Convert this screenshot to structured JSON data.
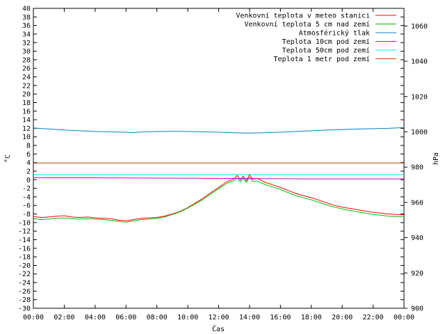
{
  "chart_data": {
    "type": "line",
    "xlabel": "Čas",
    "ylabel": "°C",
    "y2label": "hPa",
    "ylim": [
      -30,
      40
    ],
    "y2lim": [
      900,
      1070
    ],
    "y_ticks": [
      40,
      38,
      36,
      34,
      32,
      30,
      28,
      26,
      24,
      22,
      20,
      18,
      16,
      14,
      12,
      10,
      8,
      6,
      4,
      2,
      0,
      -2,
      -4,
      -6,
      -8,
      -10,
      -12,
      -14,
      -16,
      -18,
      -20,
      -22,
      -24,
      -26,
      -28,
      -30
    ],
    "y2_ticks": [
      1060,
      1040,
      1020,
      1000,
      980,
      960,
      940,
      920,
      900
    ],
    "x_ticks": [
      "00:00",
      "02:00",
      "04:00",
      "06:00",
      "08:00",
      "10:00",
      "12:00",
      "14:00",
      "16:00",
      "18:00",
      "20:00",
      "22:00",
      "00:00"
    ],
    "legend_position": "top-right",
    "grid": false,
    "series": [
      {
        "name": "Venkovní teplota v meteo stanici",
        "color": "#ff0000",
        "axis": "y",
        "x": [
          0,
          0.5,
          1,
          1.5,
          2,
          2.5,
          3,
          3.5,
          4,
          4.5,
          5,
          5.5,
          6,
          6.5,
          7,
          7.5,
          8,
          8.5,
          9,
          9.5,
          10,
          10.5,
          11,
          11.5,
          12,
          12.5,
          13,
          13.2,
          13.4,
          13.6,
          13.8,
          14,
          14.2,
          14.5,
          15,
          15.5,
          16,
          16.5,
          17,
          17.5,
          18,
          18.5,
          19,
          19.5,
          20,
          20.5,
          21,
          21.5,
          22,
          22.5,
          23,
          23.5,
          24
        ],
        "values": [
          -8.6,
          -8.8,
          -8.7,
          -8.5,
          -8.4,
          -8.7,
          -8.8,
          -8.7,
          -8.9,
          -9.0,
          -9.1,
          -9.4,
          -9.6,
          -9.3,
          -9.0,
          -8.9,
          -8.8,
          -8.5,
          -8.0,
          -7.4,
          -6.5,
          -5.4,
          -4.3,
          -3.0,
          -1.8,
          -0.5,
          0.2,
          1.0,
          0.0,
          0.8,
          -0.2,
          1.2,
          0.1,
          0.3,
          -0.6,
          -1.2,
          -1.8,
          -2.5,
          -3.2,
          -3.7,
          -4.2,
          -4.8,
          -5.4,
          -6.0,
          -6.4,
          -6.7,
          -7.0,
          -7.3,
          -7.6,
          -7.8,
          -8.0,
          -8.1,
          -8.2
        ]
      },
      {
        "name": "Venkovní teplota 5 cm nad zemí",
        "color": "#00c000",
        "axis": "y",
        "x": [
          0,
          0.5,
          1,
          1.5,
          2,
          2.5,
          3,
          3.5,
          4,
          4.5,
          5,
          5.5,
          6,
          6.5,
          7,
          7.5,
          8,
          8.5,
          9,
          9.5,
          10,
          10.5,
          11,
          11.5,
          12,
          12.5,
          13,
          13.2,
          13.4,
          13.6,
          13.8,
          14,
          14.2,
          14.5,
          15,
          15.5,
          16,
          16.5,
          17,
          17.5,
          18,
          18.5,
          19,
          19.5,
          20,
          20.5,
          21,
          21.5,
          22,
          22.5,
          23,
          23.5,
          24
        ],
        "values": [
          -9.1,
          -9.3,
          -9.2,
          -9.0,
          -8.9,
          -9.1,
          -9.2,
          -9.1,
          -9.2,
          -9.3,
          -9.5,
          -9.7,
          -9.9,
          -9.6,
          -9.3,
          -9.2,
          -9.0,
          -8.7,
          -8.1,
          -7.5,
          -6.6,
          -5.6,
          -4.6,
          -3.3,
          -2.1,
          -0.9,
          -0.2,
          0.4,
          -0.5,
          0.3,
          -0.6,
          0.6,
          -0.4,
          -0.3,
          -1.1,
          -1.7,
          -2.3,
          -3.0,
          -3.7,
          -4.2,
          -4.7,
          -5.3,
          -5.9,
          -6.4,
          -6.8,
          -7.2,
          -7.5,
          -7.8,
          -8.1,
          -8.3,
          -8.5,
          -8.6,
          -8.6
        ]
      },
      {
        "name": "Atmosférický tlak",
        "color": "#0080c0",
        "axis": "y2",
        "x": [
          0,
          1,
          2,
          3,
          4,
          5,
          6,
          6.5,
          7,
          8,
          9,
          10,
          11,
          12,
          13,
          14,
          15,
          16,
          17,
          18,
          19,
          20,
          21,
          22,
          23,
          24
        ],
        "values": [
          1002.2,
          1001.6,
          1001.0,
          1000.6,
          1000.2,
          1000.0,
          999.8,
          999.6,
          999.9,
          1000.2,
          1000.3,
          1000.2,
          1000.0,
          999.8,
          999.5,
          999.3,
          999.5,
          999.8,
          1000.2,
          1000.6,
          1001.0,
          1001.3,
          1001.6,
          1001.8,
          1002.0,
          1002.4
        ]
      },
      {
        "name": "Teplota 10cm pod zemí",
        "color": "#c000c0",
        "axis": "y",
        "x": [
          0,
          6,
          12,
          18,
          24
        ],
        "values": [
          0.5,
          0.4,
          0.3,
          0.2,
          0.2
        ]
      },
      {
        "name": "Teplota 50cm pod zemí",
        "color": "#00e0e0",
        "axis": "y",
        "x": [
          0,
          6,
          12,
          18,
          24
        ],
        "values": [
          1.2,
          1.2,
          1.2,
          1.2,
          1.2
        ]
      },
      {
        "name": "Teplota 1 metr pod zemí",
        "color": "#c04000",
        "axis": "y",
        "x": [
          0,
          6,
          12,
          18,
          24
        ],
        "values": [
          3.9,
          3.9,
          3.9,
          3.9,
          3.9
        ]
      }
    ]
  }
}
